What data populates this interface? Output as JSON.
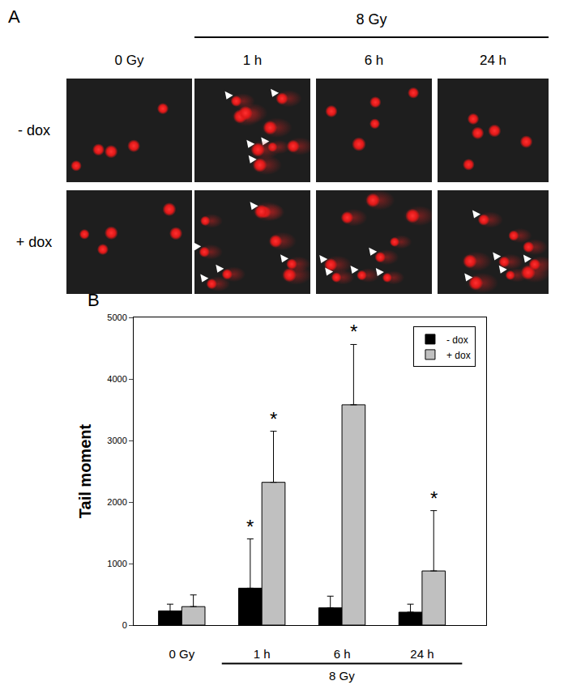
{
  "panel_a": {
    "label": "A",
    "group_label": "8 Gy",
    "columns": [
      "0 Gy",
      "1 h",
      "6 h",
      "24 h"
    ],
    "rows": [
      "- dox",
      "+ dox"
    ]
  },
  "chart_data": {
    "label": "B",
    "type": "bar",
    "categories": [
      "0 Gy",
      "1 h",
      "6 h",
      "24 h"
    ],
    "group": {
      "label": "8 Gy",
      "categories": [
        "1 h",
        "6 h",
        "24 h"
      ]
    },
    "y_label": "Tail moment",
    "ylim": [
      0,
      5000
    ],
    "yticks": [
      0,
      1000,
      2000,
      3000,
      4000,
      5000
    ],
    "grid": false,
    "legend": "upper right",
    "series": [
      {
        "name": "- dox",
        "color": "#000000",
        "values": [
          230,
          600,
          280,
          210
        ],
        "errors": [
          110,
          800,
          190,
          130
        ],
        "significance": [
          null,
          "*",
          null,
          null
        ]
      },
      {
        "name": "+ dox",
        "color": "#c0c0c0",
        "values": [
          300,
          2320,
          3580,
          880
        ],
        "errors": [
          190,
          830,
          980,
          980
        ],
        "significance": [
          null,
          "*",
          "*",
          "*"
        ]
      }
    ]
  }
}
